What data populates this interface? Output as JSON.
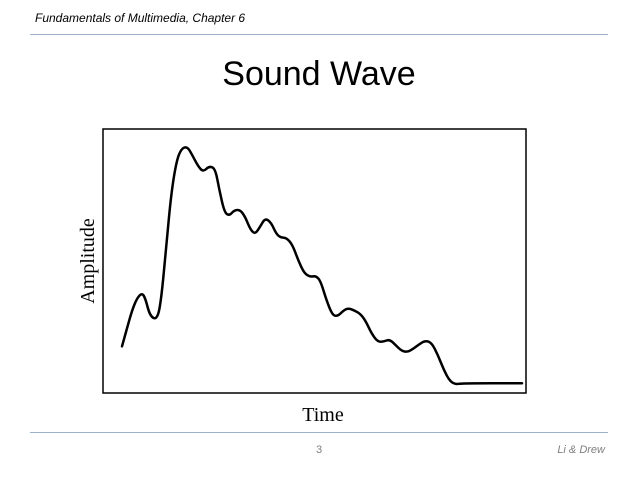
{
  "header": {
    "text": "Fundamentals of Multimedia, Chapter 6"
  },
  "slide": {
    "title": "Sound Wave"
  },
  "footer": {
    "page_number": "3",
    "author": "Li & Drew"
  },
  "chart_data": {
    "type": "line",
    "title": "",
    "xlabel": "Time",
    "ylabel": "Amplitude",
    "x_ticks": "none",
    "y_ticks": "none",
    "grid": false,
    "legend": "none",
    "line_color": "#000000",
    "xlim": [
      0,
      1
    ],
    "ylim": [
      0,
      1
    ],
    "series": [
      {
        "x": [
          0.0,
          0.013,
          0.025,
          0.038,
          0.05,
          0.058,
          0.07,
          0.088,
          0.098,
          0.111,
          0.123,
          0.136,
          0.148,
          0.163,
          0.175,
          0.19,
          0.203,
          0.218,
          0.233,
          0.243,
          0.256,
          0.268,
          0.281,
          0.296,
          0.308,
          0.321,
          0.333,
          0.346,
          0.358,
          0.373,
          0.386,
          0.398,
          0.411,
          0.426,
          0.441,
          0.456,
          0.471,
          0.484,
          0.496,
          0.511,
          0.526,
          0.539,
          0.554,
          0.566,
          0.581,
          0.596,
          0.609,
          0.624,
          0.639,
          0.654,
          0.669,
          0.684,
          0.699,
          0.714,
          0.729,
          0.744,
          0.759,
          0.774,
          0.789,
          0.804,
          0.819,
          0.834,
          0.849,
          0.864,
          0.879,
          0.894,
          0.909,
          0.924,
          0.939,
          0.954,
          0.969,
          0.984,
          0.997,
          1.0
        ],
        "y": [
          0.12,
          0.2,
          0.275,
          0.33,
          0.35,
          0.33,
          0.25,
          0.235,
          0.32,
          0.56,
          0.78,
          0.92,
          0.975,
          0.985,
          0.95,
          0.9,
          0.875,
          0.9,
          0.89,
          0.8,
          0.7,
          0.685,
          0.71,
          0.71,
          0.68,
          0.625,
          0.605,
          0.64,
          0.675,
          0.655,
          0.605,
          0.59,
          0.59,
          0.56,
          0.49,
          0.435,
          0.42,
          0.425,
          0.405,
          0.32,
          0.255,
          0.25,
          0.275,
          0.285,
          0.275,
          0.26,
          0.23,
          0.175,
          0.14,
          0.14,
          0.15,
          0.125,
          0.1,
          0.095,
          0.11,
          0.13,
          0.145,
          0.135,
          0.085,
          0.02,
          -0.03,
          -0.045,
          -0.04,
          -0.04,
          -0.04,
          -0.04,
          -0.04,
          -0.04,
          -0.04,
          -0.04,
          -0.04,
          -0.04,
          -0.04,
          -0.04
        ]
      }
    ]
  }
}
